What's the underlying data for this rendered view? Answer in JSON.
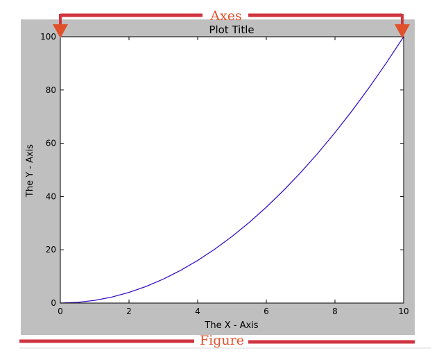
{
  "chart_data": {
    "type": "line",
    "title": "Plot Title",
    "xlabel": "The X - Axis",
    "ylabel": "The Y - Axis",
    "xlim": [
      0,
      10
    ],
    "ylim": [
      0,
      100
    ],
    "x_ticks": [
      0,
      2,
      4,
      6,
      8,
      10
    ],
    "y_ticks": [
      0,
      20,
      40,
      60,
      80,
      100
    ],
    "grid": false,
    "series": [
      {
        "color": "#3a10c8",
        "x": [
          0,
          0.5,
          1,
          1.5,
          2,
          2.5,
          3,
          3.5,
          4,
          4.5,
          5,
          5.5,
          6,
          6.5,
          7,
          7.5,
          8,
          8.5,
          9,
          9.5,
          10
        ],
        "y": [
          0,
          0.25,
          1,
          2.25,
          4,
          6.25,
          9,
          12.25,
          16,
          20.25,
          25,
          30.25,
          36,
          42.25,
          49,
          56.25,
          64,
          72.25,
          81,
          90.25,
          100
        ]
      }
    ]
  },
  "annotations": {
    "axes_label": "Axes",
    "figure_label": "Figure",
    "accent_color": "#d0343f",
    "arrow_color": "#e0502a"
  },
  "figure": {
    "background_color": "#bfbfbf",
    "axes_background": "#ffffff"
  }
}
